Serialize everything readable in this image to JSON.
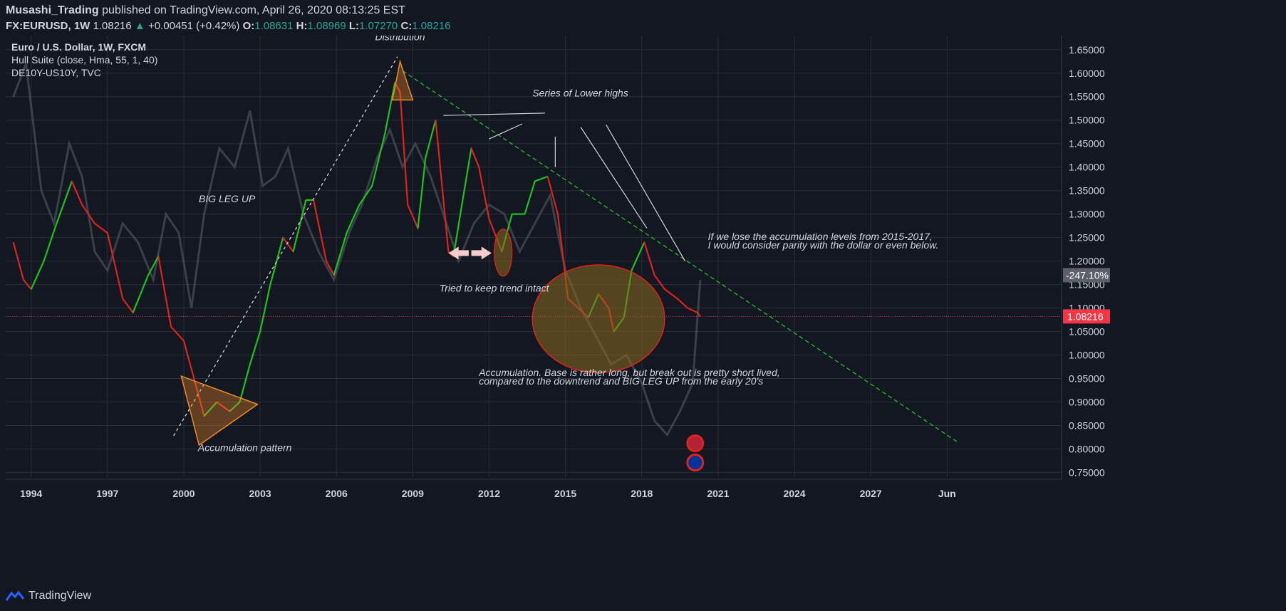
{
  "header": {
    "author": "Musashi_Trading",
    "published": "published on TradingView.com, April 26, 2020 08:13:25 EST",
    "symbol": "FX:EURUSD, 1W",
    "last": "1.08216",
    "change_arrow": "▲",
    "change": "+0.00451 (+0.42%)",
    "o_label": "O:",
    "o": "1.08631",
    "h_label": "H:",
    "h": "1.08969",
    "l_label": "L:",
    "l": "1.07270",
    "c_label": "C:",
    "c": "1.08216"
  },
  "legend": {
    "line1": "Euro / U.S. Dollar, 1W, FXCM",
    "line2": "Hull Suite (close, Hma, 55, 1, 40)",
    "line3": "DE10Y-US10Y, TVC"
  },
  "footer": {
    "brand": "TradingView",
    "logo_icon": "tradingview-logo-icon"
  },
  "colors": {
    "background": "#131722",
    "grid": "#2a2e39",
    "text": "#d1d4dc",
    "hull_up": "#1bc41b",
    "hull_down": "#e0211d",
    "price_label": "#f23645",
    "spread_label": "#5d606b",
    "trendline": "#22c122",
    "shape_orange": "#f08a24"
  },
  "chart_data": {
    "type": "line",
    "series": [
      {
        "name": "EURUSD",
        "x": [
          1993.3,
          1993.7,
          1994.0,
          1994.5,
          1995.0,
          1995.6,
          1996.0,
          1996.5,
          1997.0,
          1997.6,
          1998.0,
          1998.6,
          1999.0,
          1999.5,
          2000.0,
          2000.5,
          2000.8,
          2001.3,
          2001.8,
          2002.2,
          2002.6,
          2003.0,
          2003.4,
          2003.9,
          2004.3,
          2004.8,
          2005.1,
          2005.6,
          2005.9,
          2006.4,
          2006.9,
          2007.4,
          2007.9,
          2008.3,
          2008.5,
          2008.8,
          2009.2,
          2009.5,
          2009.9,
          2010.4,
          2010.6,
          2010.9,
          2011.3,
          2011.6,
          2012.0,
          2012.5,
          2012.9,
          2013.4,
          2013.8,
          2014.3,
          2014.7,
          2015.1,
          2015.5,
          2015.9,
          2016.3,
          2016.7,
          2016.9,
          2017.3,
          2017.6,
          2018.1,
          2018.5,
          2018.9,
          2019.4,
          2019.8,
          2020.2,
          2020.3
        ],
        "values": [
          1.24,
          1.16,
          1.14,
          1.2,
          1.28,
          1.37,
          1.32,
          1.28,
          1.26,
          1.12,
          1.09,
          1.17,
          1.21,
          1.06,
          1.03,
          0.93,
          0.87,
          0.9,
          0.88,
          0.9,
          0.98,
          1.05,
          1.15,
          1.25,
          1.22,
          1.33,
          1.33,
          1.2,
          1.17,
          1.26,
          1.32,
          1.36,
          1.47,
          1.58,
          1.56,
          1.32,
          1.27,
          1.42,
          1.5,
          1.22,
          1.21,
          1.31,
          1.44,
          1.4,
          1.29,
          1.22,
          1.3,
          1.3,
          1.37,
          1.38,
          1.3,
          1.12,
          1.1,
          1.08,
          1.13,
          1.1,
          1.05,
          1.08,
          1.18,
          1.24,
          1.17,
          1.14,
          1.12,
          1.1,
          1.09,
          1.08216
        ]
      },
      {
        "name": "DE10Y-US10Y",
        "x": [
          1993.3,
          1993.8,
          1994.4,
          1994.9,
          1995.5,
          1996.0,
          1996.5,
          1997.0,
          1997.6,
          1998.2,
          1998.8,
          1999.3,
          1999.8,
          2000.3,
          2000.8,
          2001.4,
          2002.0,
          2002.6,
          2003.1,
          2003.6,
          2004.1,
          2004.7,
          2005.3,
          2005.9,
          2006.5,
          2007.0,
          2007.6,
          2008.1,
          2008.6,
          2009.1,
          2009.7,
          2010.2,
          2010.8,
          2011.4,
          2012.0,
          2012.6,
          2013.2,
          2013.8,
          2014.4,
          2015.0,
          2015.6,
          2016.2,
          2016.8,
          2017.4,
          2018.0,
          2018.5,
          2019.0,
          2019.5,
          2020.0,
          2020.3
        ],
        "values": [
          1.55,
          1.62,
          1.35,
          1.28,
          1.45,
          1.38,
          1.22,
          1.18,
          1.28,
          1.24,
          1.16,
          1.3,
          1.26,
          1.1,
          1.3,
          1.44,
          1.4,
          1.52,
          1.36,
          1.38,
          1.44,
          1.3,
          1.22,
          1.16,
          1.26,
          1.32,
          1.42,
          1.48,
          1.4,
          1.45,
          1.38,
          1.3,
          1.2,
          1.28,
          1.32,
          1.3,
          1.22,
          1.28,
          1.34,
          1.18,
          1.1,
          1.04,
          0.98,
          1.0,
          0.94,
          0.86,
          0.83,
          0.88,
          0.94,
          1.16
        ]
      }
    ],
    "ylim": [
      0.74,
      1.68
    ],
    "xlim": [
      1993.0,
      2034.5
    ],
    "x_ticks": [
      {
        "x": 1994,
        "label": "1994"
      },
      {
        "x": 1997,
        "label": "1997"
      },
      {
        "x": 2000,
        "label": "2000"
      },
      {
        "x": 2003,
        "label": "2003"
      },
      {
        "x": 2006,
        "label": "2006"
      },
      {
        "x": 2009,
        "label": "2009"
      },
      {
        "x": 2012,
        "label": "2012"
      },
      {
        "x": 2015,
        "label": "2015"
      },
      {
        "x": 2018,
        "label": "2018"
      },
      {
        "x": 2021,
        "label": "2021"
      },
      {
        "x": 2024,
        "label": "2024"
      },
      {
        "x": 2027,
        "label": "2027"
      },
      {
        "x": 2030,
        "label": "Jun"
      }
    ],
    "y_ticks": [
      "1.65000",
      "1.60000",
      "1.55000",
      "1.50000",
      "1.45000",
      "1.40000",
      "1.35000",
      "1.30000",
      "1.25000",
      "1.20000",
      "1.15000",
      "1.10000",
      "1.05000",
      "1.00000",
      "0.95000",
      "0.90000",
      "0.85000",
      "0.80000",
      "0.75000"
    ],
    "last_price": {
      "value": 1.08216,
      "label": "1.08216"
    },
    "spread_label": {
      "value": 1.17,
      "label": "-247.10%"
    },
    "trendlines": [
      {
        "name": "downtrend",
        "points": [
          [
            2008.6,
            1.605
          ],
          [
            2030.4,
            0.815
          ]
        ]
      },
      {
        "name": "uptrend",
        "points": [
          [
            1999.6,
            0.828
          ],
          [
            2008.4,
            1.635
          ]
        ]
      }
    ],
    "annotations": [
      {
        "text": "Distribution",
        "x": 2008.5,
        "y": 1.67,
        "anchor": "middle"
      },
      {
        "text": "Series of Lower highs",
        "x": 2013.7,
        "y": 1.55,
        "anchor": "start"
      },
      {
        "text": "BIG LEG UP",
        "x": 2001.7,
        "y": 1.325,
        "anchor": "middle"
      },
      {
        "text": "Tried to keep trend intact",
        "x": 2012.2,
        "y": 1.135,
        "anchor": "middle"
      },
      {
        "text": "If we lose the accumulation levels from 2015-2017,",
        "x": 2020.6,
        "y": 1.245,
        "anchor": "start"
      },
      {
        "text": "I would consider parity with the dollar or even below.",
        "x": 2020.6,
        "y": 1.227,
        "anchor": "start"
      },
      {
        "text": "Accumulation. Base is rather long, but break out is pretty short lived,",
        "x": 2011.6,
        "y": 0.955,
        "anchor": "start"
      },
      {
        "text": "compared to the downtrend and BIG LEG UP from the early 20's",
        "x": 2011.6,
        "y": 0.937,
        "anchor": "start"
      },
      {
        "text": "Accumulation pattern",
        "x": 2002.4,
        "y": 0.795,
        "anchor": "middle"
      }
    ]
  }
}
